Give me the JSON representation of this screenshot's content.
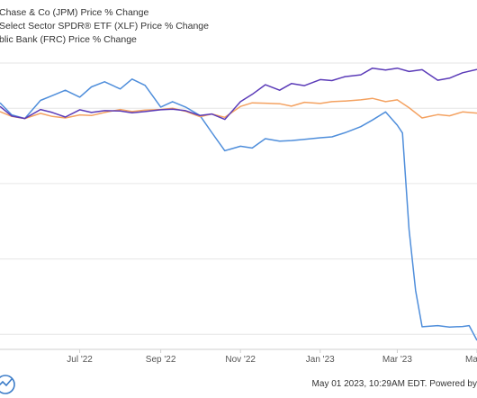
{
  "chart_data": {
    "type": "line",
    "title": "",
    "xlabel": "",
    "ylabel": "",
    "x_tick_labels": [
      "Jul '22",
      "Sep '22",
      "Nov '22",
      "Jan '23",
      "Mar '23",
      "Ma"
    ],
    "x_tick_dates": [
      "2022-07-01",
      "2022-09-01",
      "2022-11-01",
      "2023-01-01",
      "2023-03-01",
      "2023-05-01"
    ],
    "xlim": [
      "2022-05-01",
      "2023-05-01"
    ],
    "grid": "horizontal",
    "legend_placement": "top-left",
    "series": [
      {
        "name": " Chase & Co (JPM) Price % Change",
        "color": "#5b3bb8",
        "x": [
          "2022-05-01",
          "2022-05-10",
          "2022-05-20",
          "2022-06-01",
          "2022-06-10",
          "2022-06-20",
          "2022-07-01",
          "2022-07-10",
          "2022-07-20",
          "2022-08-01",
          "2022-08-10",
          "2022-08-20",
          "2022-09-01",
          "2022-09-10",
          "2022-09-20",
          "2022-10-01",
          "2022-10-10",
          "2022-10-20",
          "2022-11-01",
          "2022-11-10",
          "2022-11-20",
          "2022-12-01",
          "2022-12-10",
          "2022-12-20",
          "2023-01-01",
          "2023-01-10",
          "2023-01-20",
          "2023-02-01",
          "2023-02-10",
          "2023-02-20",
          "2023-03-01",
          "2023-03-10",
          "2023-03-20",
          "2023-04-01",
          "2023-04-10",
          "2023-04-20",
          "2023-05-01"
        ],
        "values": [
          0.6,
          -2.6,
          -3.4,
          -0.4,
          -1.4,
          -2.9,
          -0.5,
          -1.4,
          -0.8,
          -0.9,
          -1.5,
          -1.1,
          -0.5,
          -0.3,
          -0.8,
          -2.4,
          -1.9,
          -3.7,
          2.2,
          4.6,
          7.8,
          6.0,
          8.2,
          7.5,
          9.5,
          9.2,
          10.5,
          11.1,
          13.3,
          12.7,
          13.3,
          12.2,
          12.8,
          9.3,
          10.0,
          11.8,
          12.9
        ]
      },
      {
        "name": "Select Sector SPDR® ETF (XLF) Price % Change",
        "color": "#f4a261",
        "x": [
          "2022-05-01",
          "2022-05-10",
          "2022-05-20",
          "2022-06-01",
          "2022-06-10",
          "2022-06-20",
          "2022-07-01",
          "2022-07-10",
          "2022-07-20",
          "2022-08-01",
          "2022-08-10",
          "2022-08-20",
          "2022-09-01",
          "2022-09-10",
          "2022-09-20",
          "2022-10-01",
          "2022-10-10",
          "2022-10-20",
          "2022-11-01",
          "2022-11-10",
          "2022-11-20",
          "2022-12-01",
          "2022-12-10",
          "2022-12-20",
          "2023-01-01",
          "2023-01-10",
          "2023-01-20",
          "2023-02-01",
          "2023-02-10",
          "2023-02-20",
          "2023-03-01",
          "2023-03-10",
          "2023-03-20",
          "2023-04-01",
          "2023-04-10",
          "2023-04-20",
          "2023-05-01"
        ],
        "values": [
          -1.1,
          -2.7,
          -3.4,
          -1.7,
          -2.7,
          -3.2,
          -2.2,
          -2.4,
          -1.4,
          -0.4,
          -1.1,
          -0.6,
          -0.4,
          0.0,
          -1.0,
          -2.8,
          -1.9,
          -3.0,
          0.6,
          1.8,
          1.7,
          1.5,
          0.7,
          2.0,
          1.6,
          2.2,
          2.4,
          2.8,
          3.3,
          2.2,
          2.8,
          0.2,
          -3.2,
          -2.1,
          -2.5,
          -1.2,
          -1.6
        ]
      },
      {
        "name": "blic Bank (FRC) Price % Change",
        "color": "#4f8edb",
        "x": [
          "2022-05-01",
          "2022-05-10",
          "2022-05-20",
          "2022-06-01",
          "2022-06-10",
          "2022-06-20",
          "2022-07-01",
          "2022-07-10",
          "2022-07-20",
          "2022-08-01",
          "2022-08-10",
          "2022-08-20",
          "2022-09-01",
          "2022-09-10",
          "2022-09-20",
          "2022-10-01",
          "2022-10-10",
          "2022-10-20",
          "2022-11-01",
          "2022-11-10",
          "2022-11-20",
          "2022-12-01",
          "2022-12-10",
          "2022-12-20",
          "2023-01-01",
          "2023-01-10",
          "2023-01-20",
          "2023-02-01",
          "2023-02-10",
          "2023-02-20",
          "2023-03-01",
          "2023-03-05",
          "2023-03-10",
          "2023-03-15",
          "2023-03-20",
          "2023-04-01",
          "2023-04-10",
          "2023-04-20",
          "2023-04-25",
          "2023-05-01"
        ],
        "values": [
          1.8,
          -2.2,
          -3.4,
          2.6,
          4.2,
          6.0,
          3.7,
          7.1,
          8.8,
          6.4,
          9.7,
          7.6,
          0.4,
          2.2,
          0.4,
          -2.4,
          -8.0,
          -14.1,
          -12.6,
          -13.2,
          -10.1,
          -10.9,
          -10.7,
          -10.3,
          -9.8,
          -9.5,
          -8.1,
          -6.1,
          -3.9,
          -1.2,
          -5.6,
          -8.2,
          -40.2,
          -60.5,
          -72.5,
          -72.1,
          -72.6,
          -72.4,
          -72.1,
          -77.0
        ]
      }
    ]
  },
  "footer": {
    "timestamp": "May 01 2023, 10:29AM EDT.",
    "powered_by": "Powered by"
  }
}
